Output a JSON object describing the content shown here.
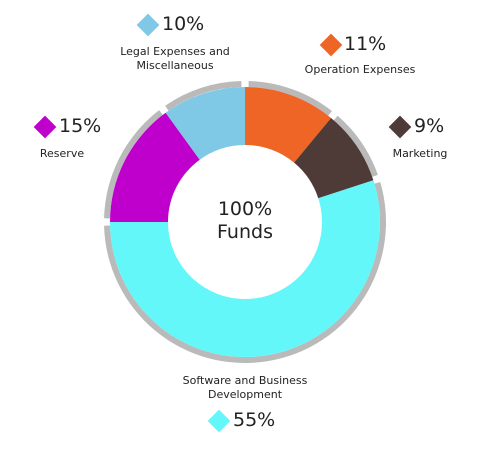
{
  "chart_data": {
    "type": "donut",
    "center_lines": [
      "100%",
      "Funds"
    ],
    "categories": [
      "Operation Expenses",
      "Marketing",
      "Software and Business Development",
      "Reserve",
      "Legal Expenses and Miscellaneous"
    ],
    "values": [
      11,
      9,
      55,
      15,
      10
    ],
    "value_labels": [
      "11%",
      "9%",
      "55%",
      "15%",
      "10%"
    ],
    "colors": [
      "#ee6526",
      "#4e3a36",
      "#63f7fa",
      "#bf00cc",
      "#7fc8e6"
    ]
  }
}
